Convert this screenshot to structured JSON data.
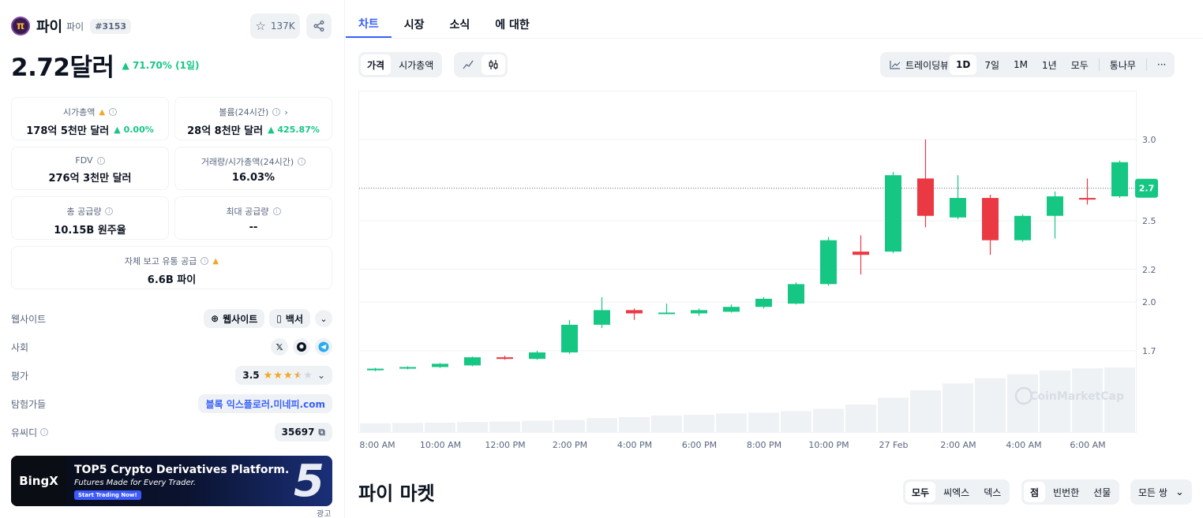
{
  "coin": {
    "name": "파이",
    "symbol": "파이",
    "rank": "#3153",
    "watch_count": "137K",
    "price": "2.72달러",
    "change": "71.70% (1일)"
  },
  "stats": {
    "market_cap": {
      "label": "시가총액",
      "value": "178억 5천만 달러",
      "change": "0.00%"
    },
    "volume": {
      "label": "볼륨(24시간)",
      "value": "28억 8천만 달러",
      "change": "425.87%"
    },
    "fdv": {
      "label": "FDV",
      "value": "276억 3천만 달러"
    },
    "vol_mcap": {
      "label": "거래량/시가총액(24시간)",
      "value": "16.03%"
    },
    "total_supply": {
      "label": "총 공급량",
      "value": "10.15B 원주율"
    },
    "max_supply": {
      "label": "최대 공급량",
      "value": "--"
    },
    "self_reported": {
      "label": "자체 보고 유통 공급",
      "value": "6.6B 파이"
    }
  },
  "info": {
    "website": {
      "label": "웹사이트",
      "link1": "웹사이트",
      "link2": "백서"
    },
    "social": {
      "label": "사회"
    },
    "rating": {
      "label": "평가",
      "value": "3.5",
      "stars": 3.5
    },
    "explorer": {
      "label": "탐험가들",
      "value": "블록 익스플로러.미네피.com"
    },
    "ucid": {
      "label": "유씨디",
      "value": "35697"
    }
  },
  "ad": {
    "brand": "BingX",
    "headline": "TOP5 Crypto Derivatives Platform.",
    "sub": "Futures Made for Every Trader.",
    "cta": "Start Trading Now!",
    "badge": "5",
    "label": "광고"
  },
  "tabs": [
    "차트",
    "시장",
    "소식",
    "에 대한"
  ],
  "toolbar": {
    "mode": [
      "가격",
      "시가총액"
    ],
    "tradingview": "트레이딩뷰",
    "ranges": [
      "1D",
      "7일",
      "1M",
      "1년",
      "모두",
      "통나무"
    ],
    "more": "···"
  },
  "markets": {
    "title": "파이 마켓",
    "filter1": [
      "모두",
      "씨엑스",
      "덱스"
    ],
    "filter2": [
      "점",
      "빈번한",
      "선물"
    ],
    "pairs": "모든 쌍"
  },
  "colors": {
    "up": "#16c784",
    "down": "#ea3943",
    "accent": "#3861fb"
  },
  "chart_data": {
    "type": "candlestick",
    "x_ticks": [
      "8:00 AM",
      "10:00 AM",
      "12:00 PM",
      "2:00 PM",
      "4:00 PM",
      "6:00 PM",
      "8:00 PM",
      "10:00 PM",
      "27 Feb",
      "2:00 AM",
      "4:00 AM",
      "6:00 AM"
    ],
    "y_ticks": [
      1.7,
      2.0,
      2.2,
      2.5,
      2.7,
      3.0
    ],
    "ylim": [
      1.2,
      3.3
    ],
    "current_price": 2.7,
    "watermark": "CoinMarketCap",
    "candles": [
      {
        "o": 1.58,
        "c": 1.59,
        "h": 1.595,
        "l": 1.575
      },
      {
        "o": 1.59,
        "c": 1.6,
        "h": 1.605,
        "l": 1.585
      },
      {
        "o": 1.6,
        "c": 1.62,
        "h": 1.625,
        "l": 1.595
      },
      {
        "o": 1.61,
        "c": 1.66,
        "h": 1.665,
        "l": 1.605
      },
      {
        "o": 1.66,
        "c": 1.65,
        "h": 1.67,
        "l": 1.645
      },
      {
        "o": 1.65,
        "c": 1.69,
        "h": 1.7,
        "l": 1.645
      },
      {
        "o": 1.69,
        "c": 1.86,
        "h": 1.89,
        "l": 1.68
      },
      {
        "o": 1.86,
        "c": 1.95,
        "h": 2.03,
        "l": 1.84
      },
      {
        "o": 1.95,
        "c": 1.93,
        "h": 1.96,
        "l": 1.89
      },
      {
        "o": 1.93,
        "c": 1.935,
        "h": 1.99,
        "l": 1.925
      },
      {
        "o": 1.93,
        "c": 1.95,
        "h": 1.96,
        "l": 1.915
      },
      {
        "o": 1.94,
        "c": 1.97,
        "h": 1.985,
        "l": 1.935
      },
      {
        "o": 1.97,
        "c": 2.02,
        "h": 2.03,
        "l": 1.96
      },
      {
        "o": 1.99,
        "c": 2.11,
        "h": 2.12,
        "l": 1.985
      },
      {
        "o": 2.11,
        "c": 2.38,
        "h": 2.4,
        "l": 2.1
      },
      {
        "o": 2.31,
        "c": 2.29,
        "h": 2.41,
        "l": 2.17
      },
      {
        "o": 2.31,
        "c": 2.78,
        "h": 2.8,
        "l": 2.3
      },
      {
        "o": 2.76,
        "c": 2.53,
        "h": 3.0,
        "l": 2.46
      },
      {
        "o": 2.52,
        "c": 2.64,
        "h": 2.78,
        "l": 2.51
      },
      {
        "o": 2.64,
        "c": 2.38,
        "h": 2.66,
        "l": 2.29
      },
      {
        "o": 2.38,
        "c": 2.53,
        "h": 2.54,
        "l": 2.37
      },
      {
        "o": 2.53,
        "c": 2.65,
        "h": 2.68,
        "l": 2.39
      },
      {
        "o": 2.64,
        "c": 2.63,
        "h": 2.76,
        "l": 2.6
      },
      {
        "o": 2.65,
        "c": 2.86,
        "h": 2.87,
        "l": 2.64
      }
    ],
    "volumes": [
      4,
      4.2,
      4.4,
      4.7,
      4.9,
      5.2,
      5.6,
      6.5,
      7.0,
      7.7,
      8.0,
      8.6,
      9.0,
      9.7,
      10.8,
      12.8,
      16.0,
      19.4,
      22.6,
      25.0,
      26.8,
      28.6,
      29.6,
      30.0
    ]
  }
}
